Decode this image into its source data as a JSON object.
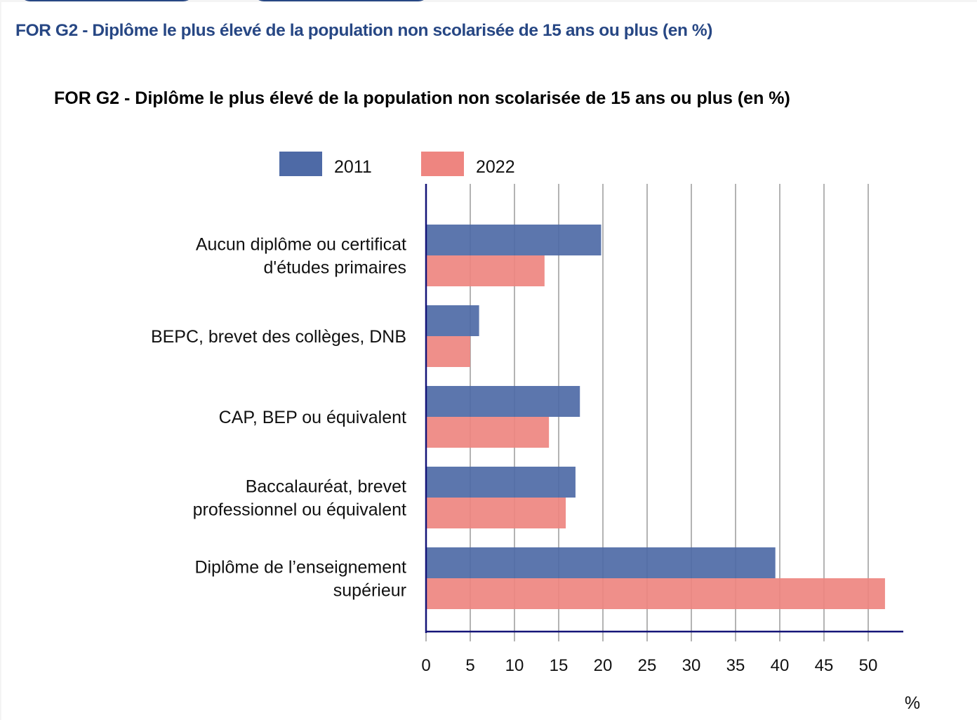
{
  "header": {
    "page_title": "FOR G2 - Diplôme le plus élevé de la population non scolarisée de 15 ans ou plus (en %)"
  },
  "colors": {
    "series_2011": "#4e6aa6",
    "series_2022": "#ee8580",
    "axis": "#141478",
    "grid": "#9a9a9a",
    "title_blue": "#274784"
  },
  "chart_data": {
    "type": "bar",
    "orientation": "horizontal",
    "title": "FOR G2 - Diplôme le plus élevé de la population non scolarisée de 15 ans ou plus (en %)",
    "xlabel": "%",
    "ylabel": "",
    "xlim": [
      0,
      54
    ],
    "xticks": [
      0,
      5,
      10,
      15,
      20,
      25,
      30,
      35,
      40,
      45,
      50
    ],
    "grid": true,
    "legend_position": "top",
    "categories": [
      [
        "Aucun diplôme ou certificat",
        "d'études primaires"
      ],
      [
        "BEPC, brevet des collèges, DNB"
      ],
      [
        "CAP, BEP ou équivalent"
      ],
      [
        "Baccalauréat, brevet",
        "professionnel ou équivalent"
      ],
      [
        "Diplôme de l’enseignement",
        "supérieur"
      ]
    ],
    "series": [
      {
        "name": "2011",
        "values": [
          19.8,
          6.0,
          17.4,
          16.9,
          39.5
        ]
      },
      {
        "name": "2022",
        "values": [
          13.4,
          5.0,
          13.9,
          15.8,
          51.9
        ]
      }
    ]
  }
}
